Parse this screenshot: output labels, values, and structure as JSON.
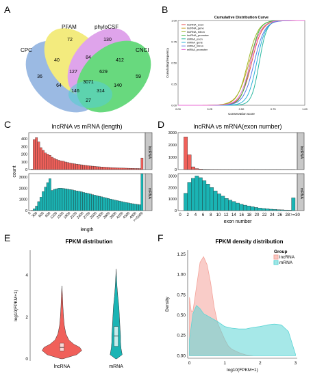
{
  "panels": {
    "A": {
      "label": "A",
      "chart_data": {
        "type": "venn",
        "sets": [
          "CPC",
          "PFAM",
          "phyloCSF",
          "CNCI"
        ],
        "colors": {
          "CPC": "#7fa7dc",
          "PFAM": "#f0e65a",
          "phyloCSF": "#d78be6",
          "CNCI": "#3ecf5a",
          "bottom": "#28c2c2"
        },
        "regions": {
          "CPC": 36,
          "PFAM": 72,
          "phyloCSF": 130,
          "CNCI": 59,
          "CPC_PFAM": 40,
          "PFAM_phyloCSF": 84,
          "phyloCSF_CNCI": 412,
          "CPC_PFAM_phyloCSF": 127,
          "PFAM_phyloCSF_CNCI": 629,
          "all": 3071,
          "CPC_CNCI": 64,
          "CPC_phyloCSF_CNCI": 140,
          "CPC_PFAM_CNCI": 146,
          "PFAM_CNCI": 314,
          "CPC_phyloCSF": 27
        }
      }
    },
    "B": {
      "label": "B",
      "chart_data": {
        "type": "line",
        "title": "Cumulative Distribution Curve",
        "xlabel": "Conservation score",
        "ylabel": "Cumulating frequency",
        "xlim": [
          0,
          1
        ],
        "ylim": [
          0,
          1
        ],
        "xticks": [
          "0.00",
          "0.25",
          "0.50",
          "0.75",
          "1.00"
        ],
        "yticks": [
          "0.00",
          "0.25",
          "0.50",
          "0.75",
          "1.00"
        ],
        "legend_position": "top-left",
        "series": [
          {
            "name": "lncRNA_exon",
            "color": "#e94a4a",
            "mid": 0.58,
            "scale": 0.07
          },
          {
            "name": "lncRNA_gene",
            "color": "#c9a02a",
            "mid": 0.56,
            "scale": 0.08
          },
          {
            "name": "lncRNA_intron",
            "color": "#9fb82a",
            "mid": 0.55,
            "scale": 0.07
          },
          {
            "name": "lncRNA_promoter",
            "color": "#3db83d",
            "mid": 0.57,
            "scale": 0.06
          },
          {
            "name": "mRNA_exon",
            "color": "#2ab8a0",
            "mid": 0.64,
            "scale": 0.05
          },
          {
            "name": "mRNA_gene",
            "color": "#2ab0d8",
            "mid": 0.62,
            "scale": 0.06
          },
          {
            "name": "mRNA_intron",
            "color": "#5a7ae8",
            "mid": 0.6,
            "scale": 0.07
          },
          {
            "name": "mRNA_promoter",
            "color": "#e86ad6",
            "mid": 0.57,
            "scale": 0.07
          }
        ]
      }
    },
    "C": {
      "label": "C",
      "chart_data": {
        "type": "bar",
        "title": "lncRNA vs mRNA (length)",
        "xlabel": "length",
        "ylabel": "count",
        "categories": [
          "0",
          "300",
          "600",
          "900",
          "1200",
          "1500",
          "1800",
          "2100",
          "2400",
          "2700",
          "3000",
          "3300",
          "3600",
          "3900",
          "4200",
          "4500",
          "4800",
          ">=5000"
        ],
        "tick_labels": [
          "0",
          "300",
          "600",
          "900",
          "1200",
          "1500",
          "1800",
          "2100",
          "2400",
          "2700",
          "3000",
          "3300",
          "3600",
          "3900",
          "4200",
          "4500",
          "4800",
          ">=5000"
        ],
        "facets": [
          {
            "name": "lncRNA",
            "color": "#f0605a",
            "ylim": [
              0,
              480
            ],
            "yticks": [
              "0",
              "100",
              "200",
              "300",
              "400"
            ],
            "values": [
              5,
              390,
              415,
              360,
              285,
              250,
              215,
              200,
              185,
              160,
              145,
              130,
              120,
              112,
              108,
              98,
              92,
              85,
              80,
              75,
              70,
              66,
              62,
              58,
              54,
              50,
              47,
              44,
              41,
              38,
              36,
              34,
              32,
              30,
              28,
              26,
              24,
              23,
              22,
              21,
              20,
              19,
              18,
              17,
              16,
              15,
              14,
              14,
              13,
              150
            ]
          },
          {
            "name": "mRNA",
            "color": "#1ab4b4",
            "ylim": [
              0,
              3300
            ],
            "yticks": [
              "0",
              "1000",
              "2000",
              "3000"
            ],
            "values": [
              20,
              150,
              400,
              800,
              1200,
              1700,
              2100,
              2500,
              2850,
              1800,
              1900,
              1950,
              2000,
              2000,
              1980,
              1950,
              1920,
              1880,
              1850,
              1800,
              1760,
              1720,
              1680,
              1620,
              1580,
              1530,
              1480,
              1420,
              1380,
              1320,
              1280,
              1230,
              1180,
              1130,
              1080,
              1030,
              980,
              930,
              890,
              850,
              800,
              760,
              720,
              680,
              640,
              610,
              580,
              550,
              520,
              3300
            ]
          }
        ]
      }
    },
    "D": {
      "label": "D",
      "chart_data": {
        "type": "bar",
        "title": "lncRNA vs mRNA(exon number)",
        "xlabel": "exon number",
        "ylabel": "",
        "tick_labels": [
          "0",
          "2",
          "4",
          "6",
          "8",
          "10",
          "12",
          "14",
          "16",
          "18",
          "20",
          "22",
          "24",
          "26",
          "28",
          ">=30"
        ],
        "facets": [
          {
            "name": "lncRNA",
            "color": "#f0605a",
            "ylim": [
              0,
              3000
            ],
            "yticks": [
              "0",
              "1000",
              "2000",
              "3000"
            ],
            "values": [
              0,
              2650,
              1200,
              220,
              80,
              40,
              20,
              10,
              8,
              6,
              5,
              4,
              3,
              3,
              2,
              2,
              2,
              1,
              1,
              1,
              1,
              1,
              1,
              1,
              1,
              1,
              1,
              1,
              1,
              1,
              1
            ]
          },
          {
            "name": "mRNA",
            "color": "#1ab4b4",
            "ylim": [
              0,
              3200
            ],
            "yticks": [
              "0",
              "1000",
              "2000",
              "3000"
            ],
            "values": [
              0,
              1500,
              2450,
              2800,
              3000,
              2850,
              2600,
              2300,
              2000,
              1700,
              1450,
              1250,
              1050,
              900,
              780,
              650,
              550,
              470,
              400,
              330,
              270,
              220,
              180,
              150,
              120,
              100,
              80,
              65,
              50,
              40,
              1100
            ]
          }
        ]
      }
    },
    "E": {
      "label": "E",
      "chart_data": {
        "type": "violin",
        "title": "FPKM distribution",
        "ylabel": "log10(FPKM+1)",
        "categories": [
          "lncRNA",
          "mRNA"
        ],
        "ylim": [
          -0.1,
          5.2
        ],
        "yticks": [
          "0",
          "2",
          "4"
        ],
        "colors": {
          "lncRNA": "#f0605a",
          "mRNA": "#1ab4b4"
        },
        "box": {
          "lncRNA": {
            "q1": 0.38,
            "median": 0.55,
            "q3": 0.75
          },
          "mRNA": {
            "q1": 0.6,
            "median": 1.1,
            "q3": 1.55
          }
        }
      }
    },
    "F": {
      "label": "F",
      "chart_data": {
        "type": "area",
        "title": "FPKM density distribution",
        "xlabel": "log10(FPKM+1)",
        "ylabel": "Density",
        "xlim": [
          -0.05,
          3.05
        ],
        "ylim": [
          -0.03,
          1.3
        ],
        "xticks": [
          "0",
          "1",
          "2",
          "3"
        ],
        "yticks": [
          "0.00",
          "0.25",
          "0.50",
          "0.75",
          "1.00",
          "1.25"
        ],
        "legend_title": "Group",
        "legend_position": "top-right",
        "series": [
          {
            "name": "lncRNA",
            "color": "#f4a39a",
            "x": [
              0,
              0.05,
              0.1,
              0.2,
              0.3,
              0.4,
              0.5,
              0.6,
              0.7,
              0.8,
              0.9,
              1.0,
              1.1,
              1.2,
              1.4,
              1.6,
              1.8
            ],
            "values": [
              0.72,
              0.55,
              0.55,
              0.85,
              1.15,
              1.22,
              1.12,
              0.9,
              0.6,
              0.4,
              0.3,
              0.2,
              0.12,
              0.08,
              0.04,
              0.01,
              0.0
            ]
          },
          {
            "name": "mRNA",
            "color": "#5dd6d6",
            "x": [
              0,
              0.1,
              0.2,
              0.3,
              0.4,
              0.6,
              0.8,
              1.0,
              1.2,
              1.4,
              1.6,
              1.8,
              2.0,
              2.2,
              2.4,
              2.6,
              2.8,
              3.0
            ],
            "values": [
              0.2,
              0.52,
              0.62,
              0.58,
              0.52,
              0.47,
              0.42,
              0.36,
              0.34,
              0.33,
              0.33,
              0.35,
              0.36,
              0.38,
              0.39,
              0.38,
              0.3,
              0.02
            ]
          }
        ]
      }
    }
  }
}
